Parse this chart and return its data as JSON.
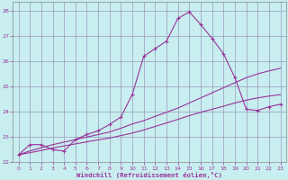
{
  "background_color": "#c8eef0",
  "grid_color": "#9999bb",
  "line_color": "#993399",
  "spine_color": "#888888",
  "xlim": [
    -0.5,
    23.5
  ],
  "ylim": [
    22.0,
    28.35
  ],
  "yticks": [
    22,
    23,
    24,
    25,
    26,
    27,
    28
  ],
  "xticks": [
    0,
    1,
    2,
    3,
    4,
    5,
    6,
    7,
    8,
    9,
    10,
    11,
    12,
    13,
    14,
    15,
    16,
    17,
    18,
    19,
    20,
    21,
    22,
    23
  ],
  "xlabel": "Windchill (Refroidissement éolien,°C)",
  "s1_x": [
    0,
    1,
    2,
    3,
    4,
    5,
    6,
    7,
    8,
    9,
    10,
    11,
    12,
    13,
    14,
    15,
    16,
    17,
    18,
    19,
    20,
    21,
    22,
    23
  ],
  "s1_y": [
    22.3,
    22.7,
    22.7,
    22.5,
    22.45,
    22.9,
    23.1,
    23.25,
    23.5,
    23.8,
    24.7,
    26.2,
    26.5,
    26.8,
    27.7,
    27.95,
    27.45,
    26.9,
    26.3,
    25.35,
    24.1,
    24.05,
    24.2,
    24.3
  ],
  "s2_x": [
    0,
    1,
    2,
    3,
    4,
    5,
    6,
    7,
    8,
    9,
    10,
    11,
    12,
    13,
    14,
    15,
    16,
    17,
    18,
    19,
    20,
    21,
    22,
    23
  ],
  "s2_y": [
    22.3,
    22.45,
    22.58,
    22.7,
    22.8,
    22.9,
    23.0,
    23.1,
    23.2,
    23.35,
    23.52,
    23.65,
    23.82,
    23.98,
    24.15,
    24.35,
    24.55,
    24.75,
    24.95,
    25.15,
    25.35,
    25.5,
    25.62,
    25.72
  ],
  "s3_x": [
    0,
    1,
    2,
    3,
    4,
    5,
    6,
    7,
    8,
    9,
    10,
    11,
    12,
    13,
    14,
    15,
    16,
    17,
    18,
    19,
    20,
    21,
    22,
    23
  ],
  "s3_y": [
    22.3,
    22.38,
    22.47,
    22.57,
    22.65,
    22.73,
    22.81,
    22.89,
    22.96,
    23.06,
    23.16,
    23.28,
    23.42,
    23.56,
    23.7,
    23.85,
    23.98,
    24.1,
    24.22,
    24.35,
    24.46,
    24.55,
    24.62,
    24.68
  ]
}
